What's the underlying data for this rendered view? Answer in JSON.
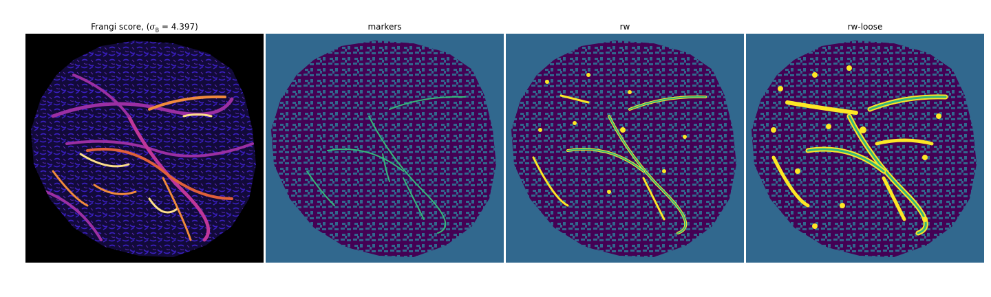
{
  "figure": {
    "panels": [
      {
        "id": "frangi",
        "title_prefix": "Frangi score, (",
        "title_symbol": "σ",
        "title_sub": "B",
        "title_suffix": " = 4.397)"
      },
      {
        "id": "markers",
        "title": "markers"
      },
      {
        "id": "rw",
        "title": "rw"
      },
      {
        "id": "rwloose",
        "title": "rw-loose"
      }
    ],
    "colors": {
      "frangi_background": "#000000",
      "frangi_texture": "#2a13a6",
      "frangi_mid": "#9b2fa3",
      "frangi_vessel": "#f08a3c",
      "frangi_bright": "#fde08a",
      "seg_background": "#31688e",
      "seg_foreground": "#440154",
      "marker_vessel": "#35b779",
      "rw_vessel_core": "#35b779",
      "rw_vessel_edge": "#fde725"
    }
  }
}
